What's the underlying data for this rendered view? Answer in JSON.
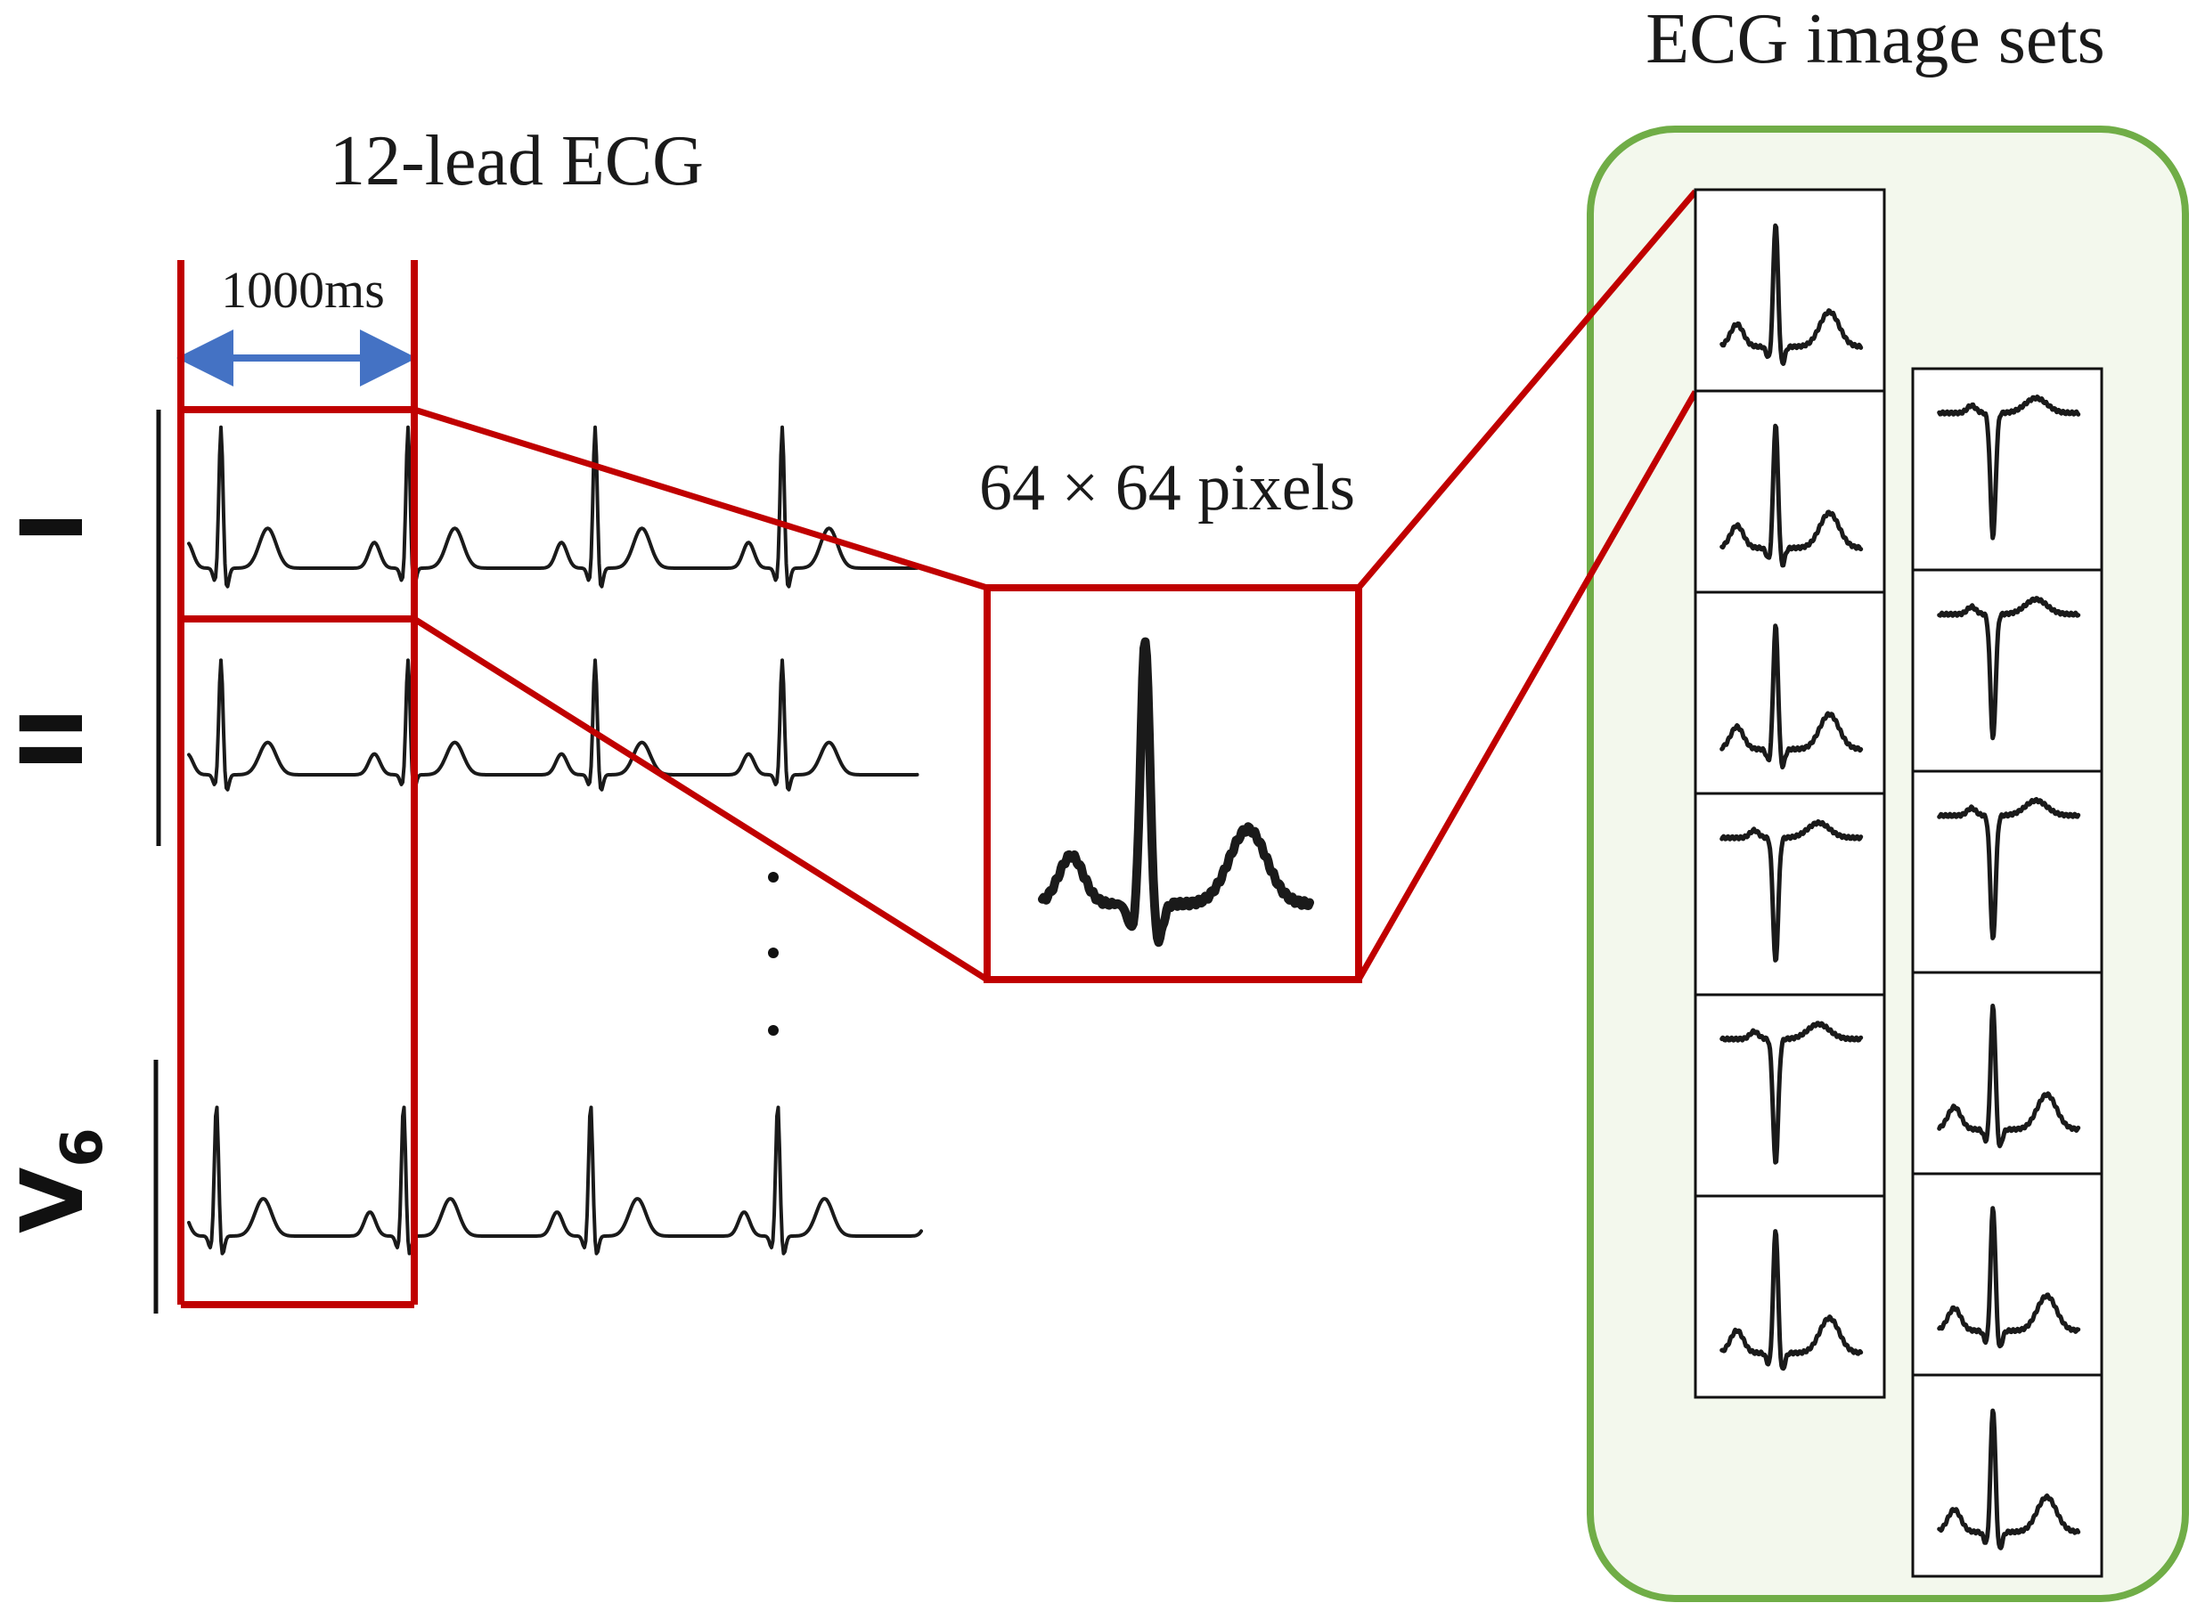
{
  "titles": {
    "left": "12-lead ECG",
    "right": "ECG image sets",
    "pixels": "64 × 64 pixels"
  },
  "measure": {
    "label": "1000ms",
    "arrow_color": "#4472c4"
  },
  "leads": {
    "first": "I",
    "second": "II",
    "last_main": "V",
    "last_sub": "6"
  },
  "colors": {
    "crop": "#c00000",
    "panel_border": "#70ad47",
    "panel_fill": "#f3f8ed",
    "trace": "#1a1a1a"
  },
  "image_sets": {
    "column_1": [
      "upright",
      "upright",
      "upright",
      "inverted",
      "inverted",
      "upright"
    ],
    "column_2": [
      "inverted",
      "inverted",
      "inverted",
      "upright",
      "upright",
      "upright"
    ]
  }
}
